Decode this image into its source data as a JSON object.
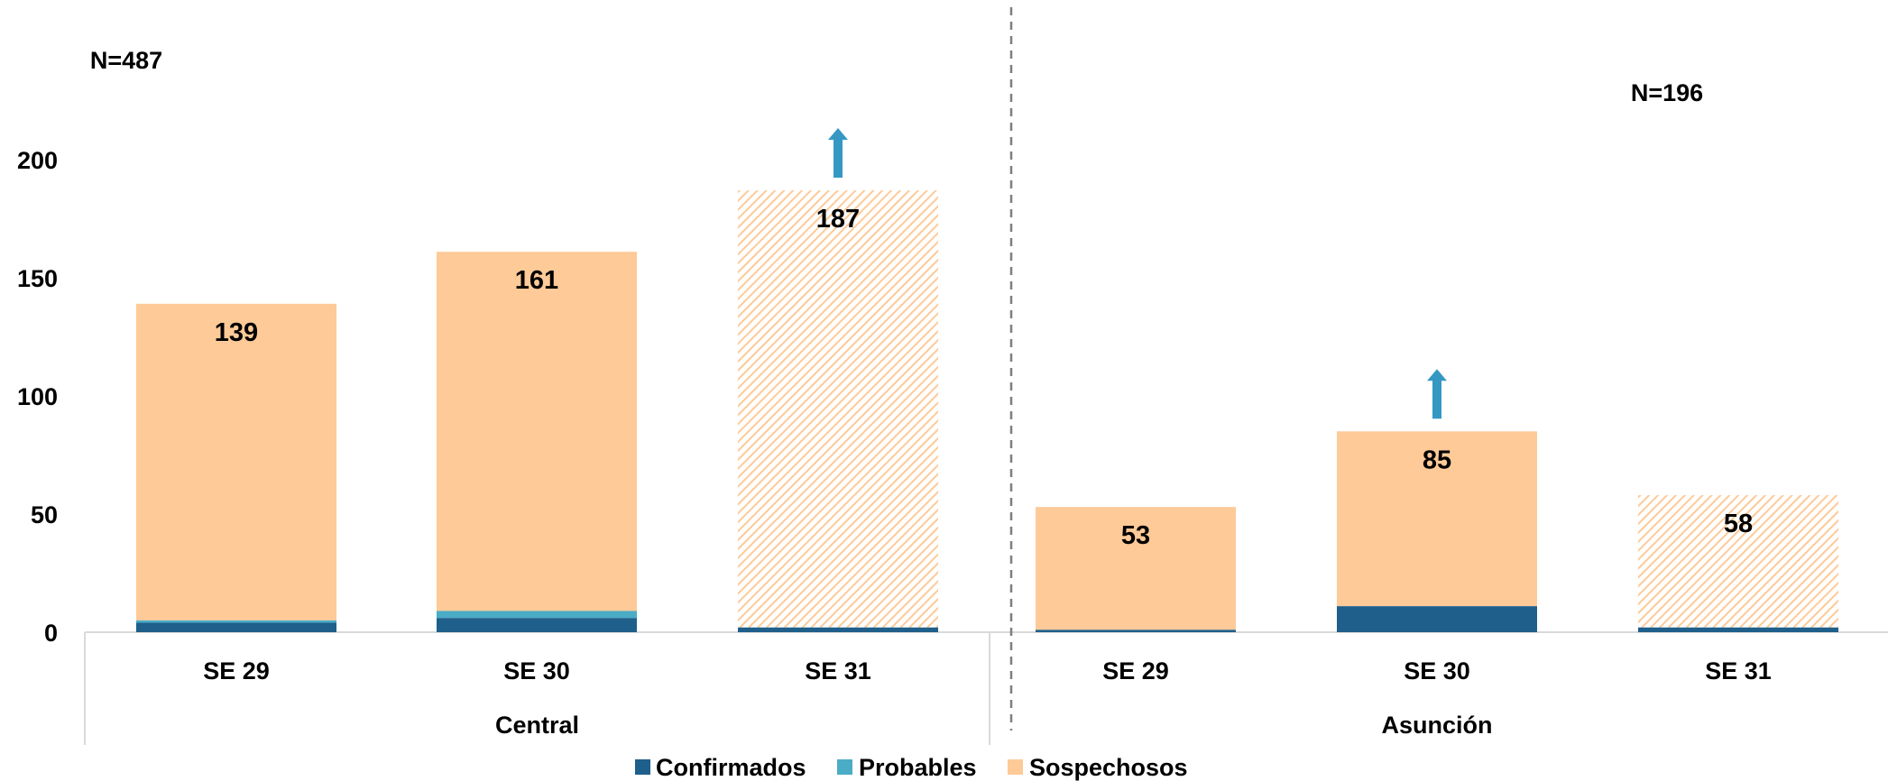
{
  "chart_data": {
    "type": "bar",
    "stacked": true,
    "ylim": [
      0,
      200
    ],
    "yticks": [
      "0",
      "50",
      "100",
      "150",
      "200"
    ],
    "grid": false,
    "legend_position": "bottom",
    "series_names": [
      "Confirmados",
      "Probables",
      "Sospechosos"
    ],
    "colors": {
      "Confirmados": "#1f5f8b",
      "Probables": "#4bacc6",
      "Sospechosos": "#fdca98",
      "arrow": "#3598c3"
    },
    "groups": [
      {
        "name": "Central",
        "n_label": "N=487",
        "categories": [
          "SE 29",
          "SE 30",
          "SE 31"
        ],
        "confirmados": [
          4,
          6,
          2
        ],
        "probables": [
          1,
          3,
          0
        ],
        "sospechosos": [
          134,
          152,
          185
        ],
        "totals": [
          139,
          161,
          187
        ],
        "total_labels": [
          "139",
          "161",
          "187"
        ],
        "hatched": [
          false,
          false,
          true
        ],
        "arrow": [
          false,
          false,
          true
        ]
      },
      {
        "name": "Asunción",
        "n_label": "N=196",
        "categories": [
          "SE 29",
          "SE 30",
          "SE 31"
        ],
        "confirmados": [
          1,
          11,
          2
        ],
        "probables": [
          0,
          0,
          0
        ],
        "sospechosos": [
          52,
          74,
          56
        ],
        "totals": [
          53,
          85,
          58
        ],
        "total_labels": [
          "53",
          "85",
          "58"
        ],
        "hatched": [
          false,
          false,
          true
        ],
        "arrow": [
          false,
          true,
          false
        ]
      }
    ]
  }
}
